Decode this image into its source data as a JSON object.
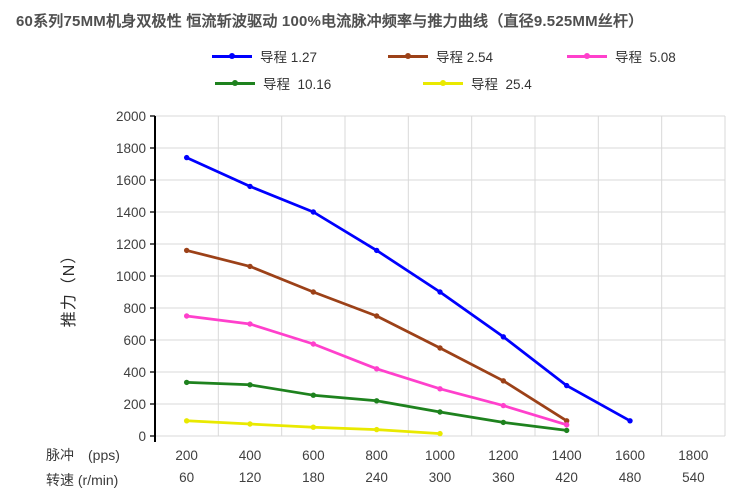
{
  "title": "60系列75MM机身双极性 恒流斩波驱动 100%电流脉冲频率与推力曲线（直径9.525MM丝杆）",
  "y_axis_title": "推力（N）",
  "x_row1_label": "脉冲　(pps)",
  "x_row2_label": "转速 (r/min)",
  "chart_data": {
    "type": "line",
    "title": "60系列75MM机身双极性 恒流斩波驱动 100%电流脉冲频率与推力曲线（直径9.525MM丝杆）",
    "xlabel_row1": "脉冲　(pps)",
    "xlabel_row2": "转速 (r/min)",
    "ylabel": "推力（N）",
    "x_ticks_pps": [
      200,
      400,
      600,
      800,
      1000,
      1200,
      1400,
      1600,
      1800
    ],
    "x_ticks_rpm": [
      60,
      120,
      180,
      240,
      300,
      360,
      420,
      480,
      540
    ],
    "y_ticks": [
      0,
      200,
      400,
      600,
      800,
      1000,
      1200,
      1400,
      1600,
      1800,
      2000
    ],
    "ylim": [
      0,
      2000
    ],
    "xlim_pps": [
      100,
      1900
    ],
    "grid": true,
    "legend_position": "top",
    "gridline_color": "#d9d9d9",
    "axis_color": "#000000",
    "tick_label_color": "#404040",
    "series": [
      {
        "name": "导程 1.27",
        "color": "#0000fe",
        "x": [
          200,
          400,
          600,
          800,
          1000,
          1200,
          1400,
          1600
        ],
        "y": [
          1740,
          1560,
          1400,
          1160,
          900,
          620,
          315,
          95
        ]
      },
      {
        "name": "导程 2.54",
        "color": "#9c4118",
        "x": [
          200,
          400,
          600,
          800,
          1000,
          1200,
          1400
        ],
        "y": [
          1160,
          1060,
          900,
          750,
          550,
          345,
          95
        ]
      },
      {
        "name": "导程  5.08",
        "color": "#ff40cc",
        "x": [
          200,
          400,
          600,
          800,
          1000,
          1200,
          1400
        ],
        "y": [
          750,
          700,
          575,
          420,
          295,
          190,
          70
        ]
      },
      {
        "name": "导程  10.16",
        "color": "#1e821e",
        "x": [
          200,
          400,
          600,
          800,
          1000,
          1200,
          1400
        ],
        "y": [
          335,
          320,
          255,
          220,
          150,
          85,
          35
        ]
      },
      {
        "name": "导程  25.4",
        "color": "#e9e900",
        "x": [
          200,
          400,
          600,
          800,
          1000
        ],
        "y": [
          95,
          75,
          55,
          40,
          15
        ]
      }
    ]
  }
}
